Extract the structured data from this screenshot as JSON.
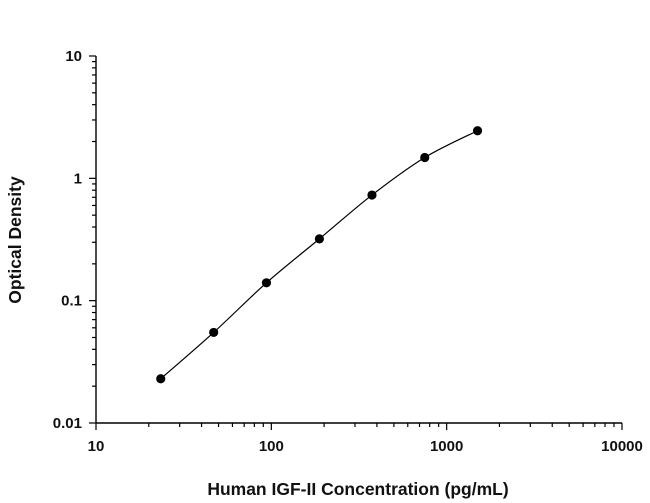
{
  "chart_data": {
    "type": "scatter",
    "xscale": "log",
    "yscale": "log",
    "xlim": [
      10,
      10000
    ],
    "ylim": [
      0.01,
      10
    ],
    "xlabel": "Human IGF-II Concentration (pg/mL)",
    "ylabel": "Optical Density",
    "xticks": [
      "10",
      "100",
      "1000",
      "10000"
    ],
    "yticks": [
      "0.01",
      "0.1",
      "1",
      "10"
    ],
    "grid": false,
    "series": [
      {
        "points": [
          {
            "x": 23.4,
            "y": 0.023
          },
          {
            "x": 46.9,
            "y": 0.055
          },
          {
            "x": 93.8,
            "y": 0.14
          },
          {
            "x": 188,
            "y": 0.32
          },
          {
            "x": 375,
            "y": 0.73
          },
          {
            "x": 750,
            "y": 1.48
          },
          {
            "x": 1500,
            "y": 2.45
          }
        ],
        "fit_curve": true
      }
    ]
  }
}
